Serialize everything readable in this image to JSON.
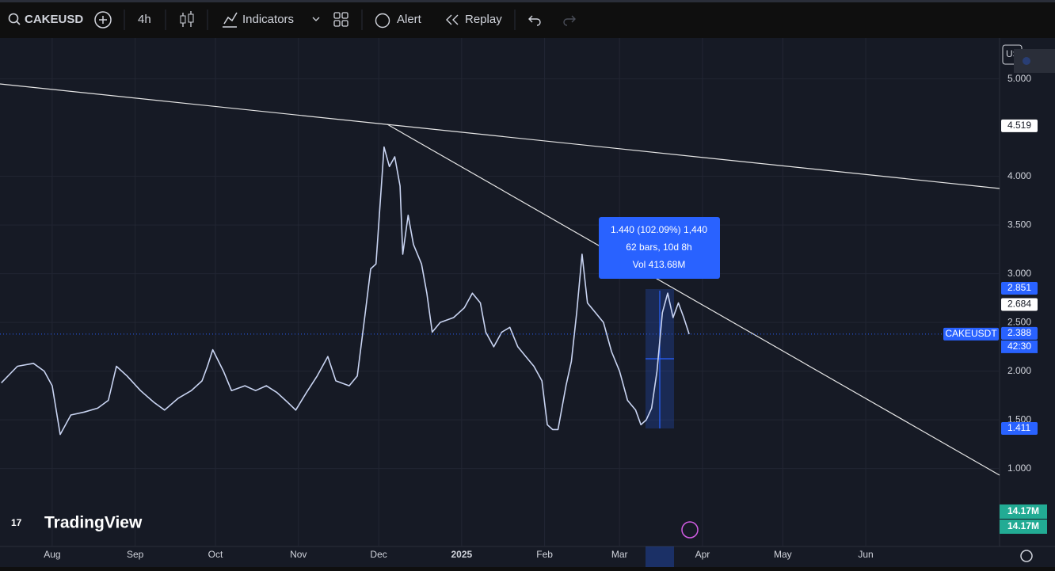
{
  "toolbar": {
    "symbol": "CAKEUSD",
    "interval": "4h",
    "indicators": "Indicators",
    "alert": "Alert",
    "replay": "Replay"
  },
  "logo": "TradingView",
  "currency": "US",
  "chart_data": {
    "type": "line",
    "symbol_label": "CAKEUSDT",
    "countdown": "42:30",
    "series": [
      {
        "name": "CAKEUSDT",
        "color": "#c9d4f2",
        "x": [
          -19,
          -13,
          -7,
          -3,
          0,
          3,
          7,
          12,
          17,
          21,
          24,
          28,
          33,
          38,
          42,
          47,
          52,
          56,
          58,
          60,
          64,
          67,
          72,
          76,
          80,
          84,
          88,
          91,
          95,
          99,
          103,
          106,
          111,
          114,
          117,
          119,
          121,
          124,
          126,
          128,
          130,
          131,
          133,
          135,
          138,
          140,
          142,
          145,
          150,
          154,
          157,
          160,
          162,
          165,
          168,
          171,
          174,
          177,
          180,
          183,
          185,
          187,
          189,
          192,
          194,
          196,
          198,
          200,
          203,
          206,
          209,
          212,
          215,
          218,
          220,
          222,
          224,
          226,
          228,
          230,
          232,
          234,
          236,
          238
        ],
        "values": [
          1.88,
          2.05,
          2.08,
          2.0,
          1.85,
          1.35,
          1.55,
          1.58,
          1.62,
          1.7,
          2.05,
          1.95,
          1.8,
          1.68,
          1.6,
          1.72,
          1.8,
          1.9,
          2.05,
          2.22,
          2.0,
          1.8,
          1.85,
          1.8,
          1.85,
          1.78,
          1.68,
          1.6,
          1.78,
          1.95,
          2.15,
          1.9,
          1.85,
          1.95,
          2.6,
          3.05,
          3.1,
          4.3,
          4.1,
          4.2,
          3.9,
          3.2,
          3.6,
          3.3,
          3.1,
          2.8,
          2.4,
          2.5,
          2.55,
          2.65,
          2.8,
          2.7,
          2.4,
          2.25,
          2.4,
          2.45,
          2.25,
          2.15,
          2.05,
          1.9,
          1.45,
          1.4,
          1.4,
          1.85,
          2.1,
          2.6,
          3.2,
          2.7,
          2.6,
          2.5,
          2.2,
          2.0,
          1.7,
          1.6,
          1.45,
          1.5,
          1.62,
          2.0,
          2.6,
          2.8,
          2.55,
          2.7,
          2.55,
          2.38
        ]
      }
    ],
    "xlim": [
      -19.5,
      354
    ],
    "xticks": [
      {
        "value": 0,
        "label": "Aug"
      },
      {
        "value": 31,
        "label": "Sep"
      },
      {
        "value": 61,
        "label": "Oct"
      },
      {
        "value": 92,
        "label": "Nov"
      },
      {
        "value": 122,
        "label": "Dec"
      },
      {
        "value": 153,
        "label": "2025"
      },
      {
        "value": 184,
        "label": "Feb"
      },
      {
        "value": 212,
        "label": "Mar"
      },
      {
        "value": 243,
        "label": "Apr"
      },
      {
        "value": 273,
        "label": "May"
      },
      {
        "value": 304,
        "label": "Jun"
      }
    ],
    "ylim": [
      0.2,
      5.42
    ],
    "yticks": [
      {
        "value": 1,
        "label": "1.000"
      },
      {
        "value": 1.5,
        "label": "1.500"
      },
      {
        "value": 2,
        "label": "2.000"
      },
      {
        "value": 2.5,
        "label": "2.500"
      },
      {
        "value": 3,
        "label": "3.000"
      },
      {
        "value": 3.5,
        "label": "3.500"
      },
      {
        "value": 4,
        "label": "4.000"
      },
      {
        "value": 5,
        "label": "5.000"
      }
    ],
    "price_labels": [
      {
        "value": 4.519,
        "label": "4.519",
        "color": "#ffffff"
      },
      {
        "value": 2.851,
        "label": "2.851",
        "color": "#2962ff"
      },
      {
        "value": 2.684,
        "label": "2.684",
        "color": "#ffffff"
      },
      {
        "value": 2.388,
        "label": "2.388",
        "color": "#2962ff"
      },
      {
        "value": 1.411,
        "label": "1.411",
        "color": "#2962ff"
      }
    ],
    "measure": {
      "line1": "1.440 (102.09%) 1,440",
      "line2": "62 bars, 10d 8h",
      "line3": "Vol 413.68M"
    },
    "volume_labels": [
      "14.17M",
      "14.17M"
    ],
    "grid": true
  }
}
